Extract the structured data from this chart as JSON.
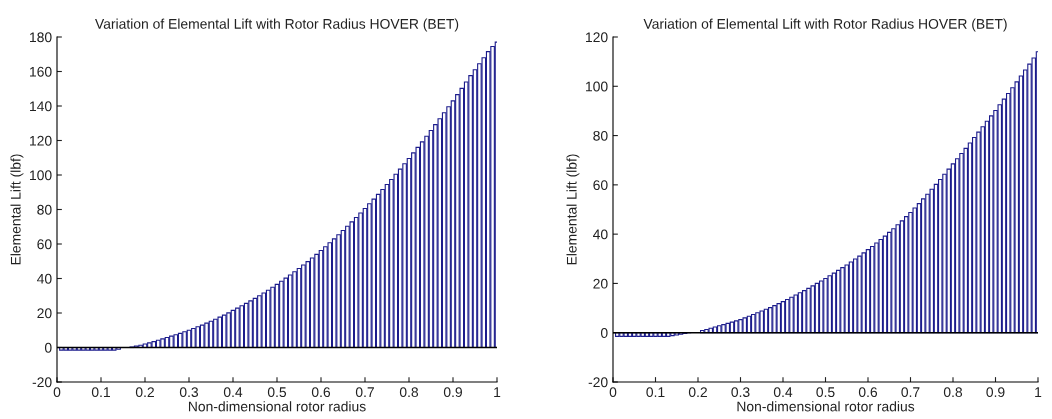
{
  "chart_data": [
    {
      "type": "bar",
      "title": "Variation of Elemental Lift with Rotor Radius HOVER (BET)",
      "xlabel": "Non-dimensional rotor radius",
      "ylabel": "Elemental Lift (lbf)",
      "x": [
        0.01,
        0.02,
        0.03,
        0.04,
        0.05,
        0.06,
        0.07,
        0.08,
        0.09,
        0.1,
        0.11,
        0.12,
        0.13,
        0.14,
        0.15,
        0.16,
        0.17,
        0.18,
        0.19,
        0.2,
        0.21,
        0.22,
        0.23,
        0.24,
        0.25,
        0.26,
        0.27,
        0.28,
        0.29,
        0.3,
        0.31,
        0.32,
        0.33,
        0.34,
        0.35,
        0.36,
        0.37,
        0.38,
        0.39,
        0.4,
        0.41,
        0.42,
        0.43,
        0.44,
        0.45,
        0.46,
        0.47,
        0.48,
        0.49,
        0.5,
        0.51,
        0.52,
        0.53,
        0.54,
        0.55,
        0.56,
        0.57,
        0.58,
        0.59,
        0.6,
        0.61,
        0.62,
        0.63,
        0.64,
        0.65,
        0.66,
        0.67,
        0.68,
        0.69,
        0.7,
        0.71,
        0.72,
        0.73,
        0.74,
        0.75,
        0.76,
        0.77,
        0.78,
        0.79,
        0.8,
        0.81,
        0.82,
        0.83,
        0.84,
        0.85,
        0.86,
        0.87,
        0.88,
        0.89,
        0.9,
        0.91,
        0.92,
        0.93,
        0.94,
        0.95,
        0.96,
        0.97,
        0.98,
        0.99,
        1.0
      ],
      "values": [
        -1.5,
        -1.5,
        -1.5,
        -1.5,
        -1.5,
        -1.5,
        -1.5,
        -1.5,
        -1.5,
        -1.5,
        -1.5,
        -1.5,
        -1.5,
        -1,
        null,
        0,
        0.3,
        0.8,
        1.3,
        2,
        2.7,
        3.4,
        4.2,
        5,
        5.8,
        6.6,
        7.4,
        8.2,
        9.1,
        10,
        11,
        12,
        13,
        14.1,
        15.2,
        16.4,
        17.6,
        18.8,
        20.1,
        21.5,
        22.8,
        24.2,
        25.6,
        27,
        28.5,
        30,
        31.6,
        33.2,
        34.9,
        36.6,
        38.4,
        40.2,
        42,
        43.9,
        45.8,
        47.8,
        49.8,
        51.9,
        54,
        56.2,
        58.4,
        60.7,
        63,
        65.4,
        67.8,
        70.3,
        72.8,
        75.4,
        78,
        80.6,
        83.3,
        86,
        88.8,
        91.6,
        94.5,
        97.4,
        100.4,
        103.4,
        106.5,
        109.6,
        112.8,
        116,
        119.2,
        122.5,
        125.8,
        129.2,
        132.6,
        136.1,
        139.6,
        143,
        146.6,
        150.2,
        153.9,
        157.6,
        161,
        164.5,
        168,
        171.5,
        174.5,
        177
      ],
      "color": "#1c1c8c",
      "xlim": [
        0,
        1
      ],
      "ylim": [
        -20,
        180
      ],
      "xticks": [
        0,
        0.1,
        0.2,
        0.3,
        0.4,
        0.5,
        0.6,
        0.7,
        0.8,
        0.9,
        1
      ],
      "yticks": [
        -20,
        0,
        20,
        40,
        60,
        80,
        100,
        120,
        140,
        160,
        180
      ],
      "grid": false,
      "ref_lines": [
        {
          "axis": "y",
          "value": 0,
          "color": "#000000"
        }
      ]
    },
    {
      "type": "bar",
      "title": "Variation of Elemental Lift with Rotor Radius HOVER (BET)",
      "xlabel": "Non-dimensional rotor radius",
      "ylabel": "Elemental Lift (lbf)",
      "x": [
        0.01,
        0.02,
        0.03,
        0.04,
        0.05,
        0.06,
        0.07,
        0.08,
        0.09,
        0.1,
        0.11,
        0.12,
        0.13,
        0.14,
        0.15,
        0.16,
        0.17,
        0.18,
        0.19,
        0.2,
        0.21,
        0.22,
        0.23,
        0.24,
        0.25,
        0.26,
        0.27,
        0.28,
        0.29,
        0.3,
        0.31,
        0.32,
        0.33,
        0.34,
        0.35,
        0.36,
        0.37,
        0.38,
        0.39,
        0.4,
        0.41,
        0.42,
        0.43,
        0.44,
        0.45,
        0.46,
        0.47,
        0.48,
        0.49,
        0.5,
        0.51,
        0.52,
        0.53,
        0.54,
        0.55,
        0.56,
        0.57,
        0.58,
        0.59,
        0.6,
        0.61,
        0.62,
        0.63,
        0.64,
        0.65,
        0.66,
        0.67,
        0.68,
        0.69,
        0.7,
        0.71,
        0.72,
        0.73,
        0.74,
        0.75,
        0.76,
        0.77,
        0.78,
        0.79,
        0.8,
        0.81,
        0.82,
        0.83,
        0.84,
        0.85,
        0.86,
        0.87,
        0.88,
        0.89,
        0.9,
        0.91,
        0.92,
        0.93,
        0.94,
        0.95,
        0.96,
        0.97,
        0.98,
        0.99,
        1.0
      ],
      "values": [
        -1.5,
        -1.5,
        -1.5,
        -1.5,
        -1.5,
        -1.5,
        -1.5,
        -1.5,
        -1.5,
        -1.5,
        -1.5,
        -1.5,
        -1.5,
        -1.2,
        -0.9,
        -0.6,
        -0.3,
        0,
        null,
        null,
        0.9,
        1.3,
        1.8,
        2.3,
        2.8,
        3.3,
        3.8,
        4.3,
        4.8,
        5.3,
        6,
        6.7,
        7.4,
        8.1,
        8.8,
        9.5,
        10.2,
        11,
        11.8,
        12.6,
        13.5,
        14.4,
        15.3,
        16.2,
        17.1,
        18,
        19,
        20,
        21,
        22,
        23.1,
        24.2,
        25.3,
        26.4,
        27.5,
        28.7,
        29.9,
        31.1,
        32.4,
        33.7,
        35,
        36.4,
        37.8,
        39.2,
        40.7,
        42.2,
        43.8,
        45.4,
        47.1,
        48.8,
        50.6,
        52.4,
        54.3,
        56.2,
        58.2,
        60.2,
        62.2,
        64.3,
        66.4,
        68.5,
        70.6,
        72.7,
        74.8,
        77,
        79.2,
        81.4,
        83.6,
        85.8,
        88,
        90.2,
        92.5,
        94.8,
        97.1,
        99.4,
        101.8,
        104.2,
        106.6,
        109,
        111.5,
        114
      ],
      "color": "#1c1c8c",
      "xlim": [
        0,
        1
      ],
      "ylim": [
        -20,
        120
      ],
      "xticks": [
        0,
        0.1,
        0.2,
        0.3,
        0.4,
        0.5,
        0.6,
        0.7,
        0.8,
        0.9,
        1
      ],
      "yticks": [
        -20,
        0,
        20,
        40,
        60,
        80,
        100,
        120
      ],
      "grid": false,
      "ref_lines": [
        {
          "axis": "y",
          "value": 0,
          "color": "#000000"
        }
      ]
    }
  ]
}
